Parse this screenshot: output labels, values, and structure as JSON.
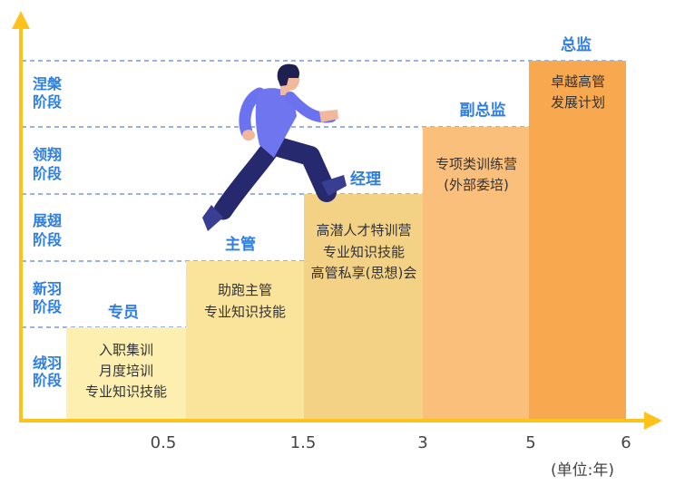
{
  "colors": {
    "axis": "#ffc21a",
    "label_blue": "#2f7ee0",
    "grid": "#5b86c8",
    "bar1": "#fcefb0",
    "bar2": "#fae39a",
    "bar3": "#f3d286",
    "bar4": "#fbbf7c",
    "bar5": "#f8a84f"
  },
  "stages": [
    {
      "line1": "绒羽",
      "line2": "阶段"
    },
    {
      "line1": "新羽",
      "line2": "阶段"
    },
    {
      "line1": "展翅",
      "line2": "阶段"
    },
    {
      "line1": "领翔",
      "line2": "阶段"
    },
    {
      "line1": "涅槃",
      "line2": "阶段"
    }
  ],
  "x_ticks": [
    "0.5",
    "1.5",
    "3",
    "5",
    "6"
  ],
  "unit_label": "(单位:年)",
  "roles": [
    {
      "title": "专员",
      "lines": [
        "入职集训",
        "月度培训",
        "专业知识技能"
      ]
    },
    {
      "title": "主管",
      "lines": [
        "助跑主管",
        "专业知识技能"
      ]
    },
    {
      "title": "经理",
      "lines": [
        "高潜人才特训营",
        "专业知识技能",
        "高管私享(思想)会"
      ]
    },
    {
      "title": "副总监",
      "lines": [
        "专项类训练营",
        "(外部委培)"
      ]
    },
    {
      "title": "总监",
      "lines": [
        "卓越高管",
        "发展计划"
      ]
    }
  ],
  "illustration": {
    "icon": "running-man-icon"
  }
}
